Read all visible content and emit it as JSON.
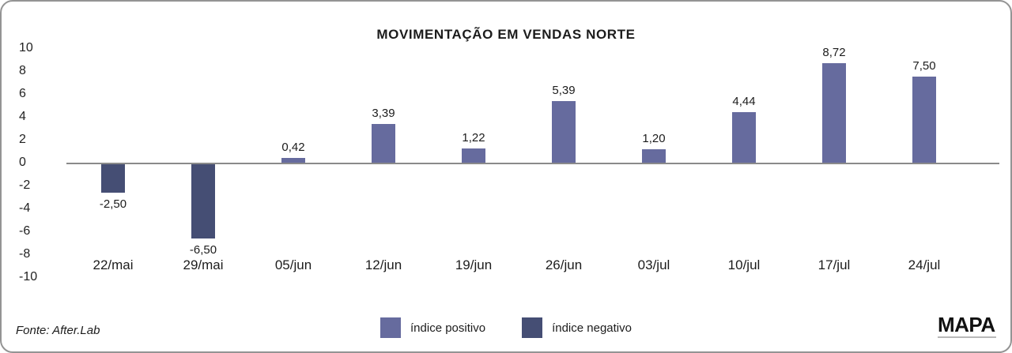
{
  "chart_data": {
    "type": "bar",
    "title": "MOVIMENTAÇÃO EM VENDAS NORTE",
    "categories": [
      "22/mai",
      "29/mai",
      "05/jun",
      "12/jun",
      "19/jun",
      "26/jun",
      "03/jul",
      "10/jul",
      "17/jul",
      "24/jul"
    ],
    "values": [
      -2.5,
      -6.5,
      0.42,
      3.39,
      1.22,
      5.39,
      1.2,
      4.44,
      8.72,
      7.5
    ],
    "value_labels": [
      "-2,50",
      "-6,50",
      "0,42",
      "3,39",
      "1,22",
      "5,39",
      "1,20",
      "4,44",
      "8,72",
      "7,50"
    ],
    "yticks": [
      10,
      8,
      6,
      4,
      2,
      0,
      -2,
      -4,
      -6,
      -8,
      -10
    ],
    "ylim": [
      -10,
      10
    ],
    "xlabel": "",
    "ylabel": "",
    "grid": false,
    "legend_position": "bottom-center",
    "legend": [
      {
        "label": "índice positivo",
        "color": "#666b9e"
      },
      {
        "label": "índice negativo",
        "color": "#454e74"
      }
    ],
    "axis_line_color": "#8a8a8a"
  },
  "footer": {
    "source": "Fonte: After.Lab",
    "logo": "MAPA"
  }
}
